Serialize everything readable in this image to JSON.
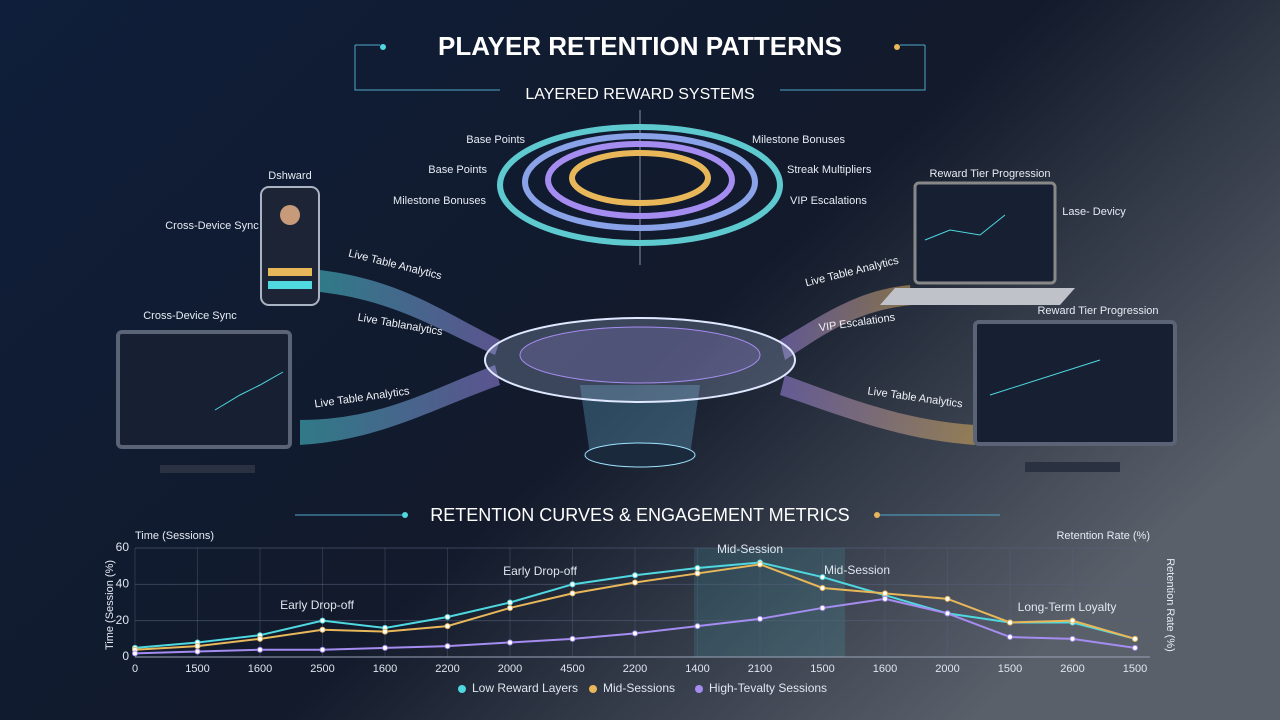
{
  "header": {
    "title": "PLAYER RETENTION PATTERNS",
    "subtitle": "LAYERED REWARD SYSTEMS"
  },
  "reward_layers": {
    "left": [
      "Base Points",
      "Base Points",
      "Milestone Bonuses"
    ],
    "right": [
      "Milestone Bonuses",
      "Streak Multipliers",
      "VIP Escalations"
    ]
  },
  "devices": [
    "Dshward",
    "Cross-Device Sync",
    "Cross-Device Sync",
    "Reward Tier Progression",
    "Lase- Devicy",
    "Reward Tier Progression"
  ],
  "flows": [
    "Live Table Analytics",
    "Live Tablanalytics",
    "Live Table Analytics",
    "Live Table Analytics",
    "VIP Escalations",
    "Live Table Analytics"
  ],
  "chart_data": {
    "type": "line",
    "title": "RETENTION CURVES & ENGAGEMENT METRICS",
    "x_label": "Time (Sessions)",
    "y_label": "Retention Rate (%)",
    "side_labels": [
      "Time (Session (%)",
      "Retention Rate (%)"
    ],
    "annotations": [
      "Early Drop-off",
      "Early Drop-off",
      "Mid-Session",
      "Mid-Session",
      "Long-Term Loyalty"
    ],
    "categories": [
      "0",
      "1500",
      "1600",
      "2500",
      "1600",
      "2200",
      "2000",
      "4500",
      "2200",
      "1400",
      "2100",
      "1500",
      "1600",
      "2000",
      "1500",
      "2600",
      "1500"
    ],
    "series": [
      {
        "name": "Low Reward Layers",
        "color": "#4fd8e0",
        "values": [
          5,
          8,
          12,
          20,
          16,
          22,
          30,
          40,
          45,
          49,
          52,
          44,
          34,
          24,
          19,
          19,
          10
        ]
      },
      {
        "name": "Mid-Sessions",
        "color": "#e8b75a",
        "values": [
          4,
          6,
          10,
          15,
          14,
          17,
          27,
          35,
          41,
          46,
          51,
          38,
          35,
          32,
          19,
          20,
          10
        ]
      },
      {
        "name": "High-Tevalty Sessions",
        "color": "#a58cf0",
        "values": [
          2,
          3,
          4,
          4,
          5,
          6,
          8,
          10,
          13,
          17,
          21,
          27,
          32,
          24,
          11,
          10,
          5
        ]
      }
    ],
    "ylim": [
      0,
      60
    ],
    "yticks": [
      0,
      20,
      40,
      60
    ],
    "grid": true
  }
}
